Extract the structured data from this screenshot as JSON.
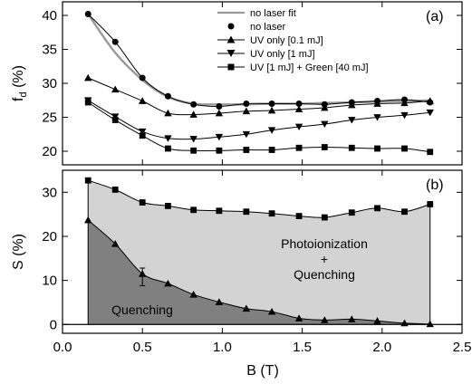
{
  "chart_data": [
    {
      "panel": "(a)",
      "type": "line",
      "xlabel": "",
      "ylabel": "f_d (%)",
      "ylabel_main": "f",
      "ylabel_sub": "d",
      "ylabel_unit": " (%)",
      "xlim": [
        0.0,
        2.5
      ],
      "ylim": [
        18,
        42
      ],
      "yticks": [
        20,
        25,
        30,
        35,
        40
      ],
      "ytick_labels": [
        "20",
        "25",
        "30",
        "35",
        "40"
      ],
      "x_tick_labels_visible": false,
      "grid": false,
      "legend_placement": "top-right",
      "series": [
        {
          "name": "no laser fit",
          "style": "gray-line",
          "color": "#999999",
          "x": [
            0.16,
            0.33,
            0.5,
            0.66,
            0.82,
            0.98,
            1.15,
            1.31,
            1.48,
            1.64,
            1.81,
            1.97,
            2.14,
            2.3
          ],
          "y": [
            40.2,
            34.5,
            30.5,
            28.0,
            27.0,
            26.9,
            26.9,
            27.0,
            27.0,
            27.1,
            27.2,
            27.3,
            27.4,
            27.5
          ]
        },
        {
          "name": "no laser",
          "marker": "circle",
          "color": "#000000",
          "x": [
            0.16,
            0.33,
            0.5,
            0.66,
            0.82,
            0.98,
            1.15,
            1.31,
            1.48,
            1.64,
            1.81,
            1.97,
            2.14,
            2.3
          ],
          "y": [
            40.2,
            36.1,
            30.8,
            28.1,
            26.9,
            26.6,
            27.0,
            27.0,
            27.0,
            26.9,
            27.2,
            27.4,
            27.6,
            27.2
          ]
        },
        {
          "name": "UV only [0.1 mJ]",
          "marker": "triangle-up",
          "color": "#000000",
          "x": [
            0.16,
            0.33,
            0.5,
            0.66,
            0.82,
            0.98,
            1.15,
            1.31,
            1.48,
            1.64,
            1.81,
            1.97,
            2.14,
            2.3
          ],
          "y": [
            30.8,
            29.1,
            27.4,
            25.6,
            25.4,
            25.6,
            25.9,
            26.0,
            26.2,
            26.4,
            26.8,
            27.0,
            27.1,
            27.4
          ]
        },
        {
          "name": "UV only [1 mJ]",
          "marker": "triangle-down",
          "color": "#000000",
          "x": [
            0.16,
            0.33,
            0.5,
            0.66,
            0.82,
            0.98,
            1.15,
            1.31,
            1.48,
            1.64,
            1.81,
            1.97,
            2.14,
            2.3
          ],
          "y": [
            27.5,
            25.1,
            22.9,
            21.9,
            21.8,
            22.1,
            22.5,
            23.1,
            23.6,
            24.0,
            24.6,
            25.0,
            25.3,
            25.7
          ]
        },
        {
          "name": "UV [1 mJ] + Green [40 mJ]",
          "marker": "square",
          "color": "#000000",
          "x": [
            0.16,
            0.33,
            0.5,
            0.66,
            0.82,
            0.98,
            1.15,
            1.31,
            1.48,
            1.64,
            1.81,
            1.97,
            2.14,
            2.3
          ],
          "y": [
            27.2,
            24.6,
            22.3,
            20.4,
            20.1,
            20.1,
            20.2,
            20.2,
            20.5,
            20.6,
            20.5,
            20.4,
            20.4,
            19.9
          ]
        }
      ]
    },
    {
      "panel": "(b)",
      "type": "area",
      "xlabel": "B (T)",
      "ylabel": "S (%)",
      "xlim": [
        0.0,
        2.5
      ],
      "ylim": [
        -2,
        35
      ],
      "xticks": [
        0.0,
        0.5,
        1.0,
        1.5,
        2.0,
        2.5
      ],
      "xtick_labels": [
        "0.0",
        "0.5",
        "1.0",
        "1.5",
        "2.0",
        "2.5"
      ],
      "yticks": [
        0,
        10,
        20,
        30
      ],
      "ytick_labels": [
        "0",
        "10",
        "20",
        "30"
      ],
      "grid": false,
      "series": [
        {
          "marker": "square",
          "fill_color": "#d3d3d3",
          "x": [
            0.16,
            0.33,
            0.5,
            0.66,
            0.82,
            0.98,
            1.15,
            1.31,
            1.48,
            1.64,
            1.81,
            1.97,
            2.14,
            2.3
          ],
          "y": [
            32.7,
            30.6,
            27.7,
            26.9,
            26.0,
            25.8,
            25.6,
            25.2,
            24.6,
            24.3,
            25.4,
            26.4,
            25.6,
            27.3
          ]
        },
        {
          "marker": "triangle",
          "fill_color": "#808080",
          "x": [
            0.16,
            0.33,
            0.5,
            0.66,
            0.82,
            0.98,
            1.15,
            1.31,
            1.48,
            1.64,
            1.81,
            1.97,
            2.14,
            2.3
          ],
          "y": [
            23.7,
            18.3,
            11.5,
            9.3,
            6.8,
            5.1,
            3.6,
            2.9,
            1.4,
            1.0,
            1.2,
            0.8,
            0.3,
            0.1
          ],
          "error_bar": {
            "x": 0.5,
            "low": 8.8,
            "high": 12.8
          }
        }
      ],
      "annotations": [
        {
          "lines": [
            "Photoionization",
            "+",
            "Quenching"
          ]
        },
        {
          "lines": [
            "Quenching"
          ]
        }
      ]
    }
  ],
  "panel_a_label": "(a)",
  "panel_b_label": "(b)",
  "region_upper_line1": "Photoionization",
  "region_upper_line2": "+",
  "region_upper_line3": "Quenching",
  "region_lower": "Quenching",
  "x_axis_title": "B (T)",
  "y_axis_a_main": "f",
  "y_axis_a_sub": "d",
  "y_axis_a_unit": " (%)",
  "y_axis_b_title": "S (%)",
  "legend_labels": [
    "no laser fit",
    "no laser",
    "UV only [0.1 mJ]",
    "UV only [1 mJ]",
    "UV [1 mJ] + Green [40 mJ]"
  ]
}
